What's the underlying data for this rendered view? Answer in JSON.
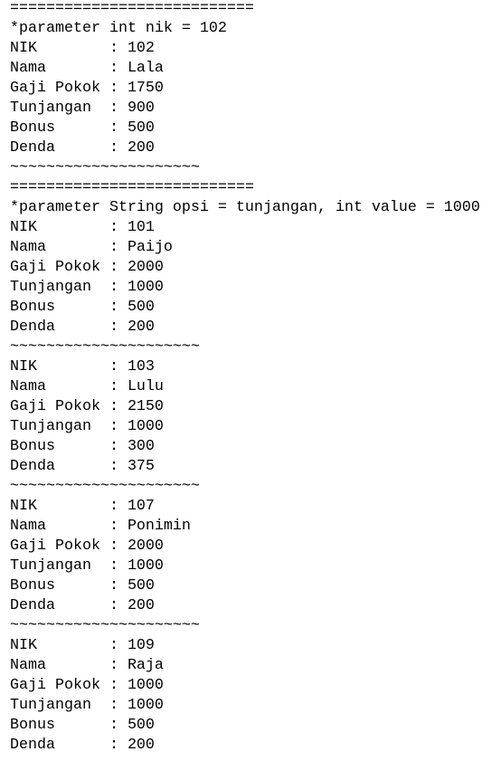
{
  "console": {
    "lines": [
      "===========================",
      "*parameter int nik = 102",
      "NIK        : 102",
      "Nama       : Lala",
      "Gaji Pokok : 1750",
      "Tunjangan  : 900",
      "Bonus      : 500",
      "Denda      : 200",
      "~~~~~~~~~~~~~~~~~~~~~",
      "===========================",
      "*parameter String opsi = tunjangan, int value = 1000",
      "NIK        : 101",
      "Nama       : Paijo",
      "Gaji Pokok : 2000",
      "Tunjangan  : 1000",
      "Bonus      : 500",
      "Denda      : 200",
      "~~~~~~~~~~~~~~~~~~~~~",
      "NIK        : 103",
      "Nama       : Lulu",
      "Gaji Pokok : 2150",
      "Tunjangan  : 1000",
      "Bonus      : 300",
      "Denda      : 375",
      "~~~~~~~~~~~~~~~~~~~~~",
      "NIK        : 107",
      "Nama       : Ponimin",
      "Gaji Pokok : 2000",
      "Tunjangan  : 1000",
      "Bonus      : 500",
      "Denda      : 200",
      "~~~~~~~~~~~~~~~~~~~~~",
      "NIK        : 109",
      "Nama       : Raja",
      "Gaji Pokok : 1000",
      "Tunjangan  : 1000",
      "Bonus      : 500",
      "Denda      : 200"
    ]
  }
}
